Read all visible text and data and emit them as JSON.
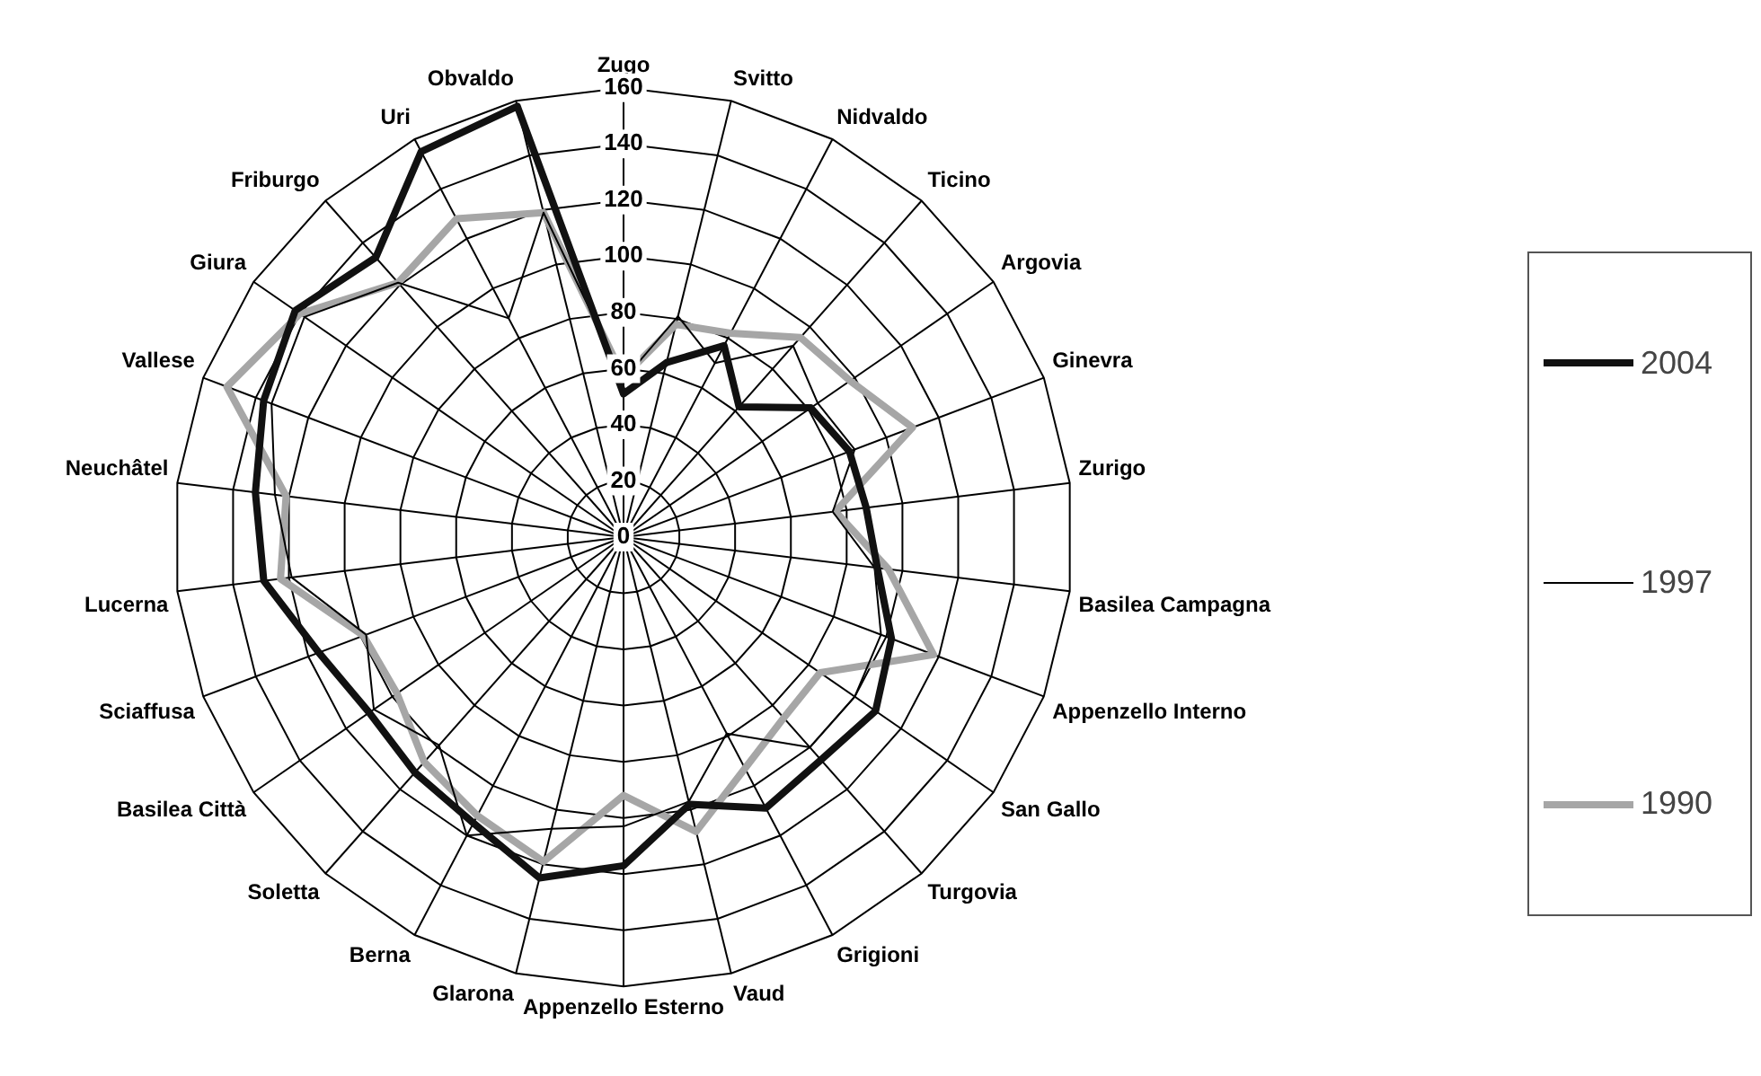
{
  "chart_data": {
    "type": "radar",
    "categories": [
      "Zugo",
      "Svitto",
      "Nidvaldo",
      "Ticino",
      "Argovia",
      "Ginevra",
      "Zurigo",
      "Basilea Campagna",
      "Appenzello Interno",
      "San Gallo",
      "Turgovia",
      "Grigioni",
      "Vaud",
      "Appenzello Esterno",
      "Glarona",
      "Berna",
      "Soletta",
      "Basilea Città",
      "Sciaffusa",
      "Lucerna",
      "Neuchâtel",
      "Vallese",
      "Giura",
      "Friburgo",
      "Uri",
      "Obvaldo"
    ],
    "series": [
      {
        "name": "2004",
        "color": "#111111",
        "values": [
          51,
          64,
          77,
          62,
          81,
          86,
          87,
          91,
          102,
          109,
          106,
          109,
          98,
          117,
          125,
          115,
          112,
          110,
          116,
          129,
          132,
          137,
          142,
          133,
          155,
          158
        ]
      },
      {
        "name": "1997",
        "color": "#000000",
        "values": [
          56,
          81,
          70,
          91,
          84,
          88,
          75,
          90,
          98,
          100,
          100,
          79,
          97,
          103,
          107,
          120,
          99,
          108,
          98,
          119,
          125,
          134,
          138,
          121,
          88,
          119
        ]
      },
      {
        "name": "1990",
        "color": "#a6a6a6",
        "values": [
          57,
          78,
          82,
          95,
          98,
          110,
          76,
          95,
          118,
          85,
          86,
          93,
          108,
          92,
          119,
          112,
          107,
          98,
          99,
          123,
          121,
          151,
          140,
          121,
          128,
          119
        ]
      }
    ],
    "ylim": [
      0,
      160
    ],
    "yticks": [
      0,
      20,
      40,
      60,
      80,
      100,
      120,
      140,
      160
    ],
    "grid": true,
    "legend": "right",
    "marker": "none"
  }
}
